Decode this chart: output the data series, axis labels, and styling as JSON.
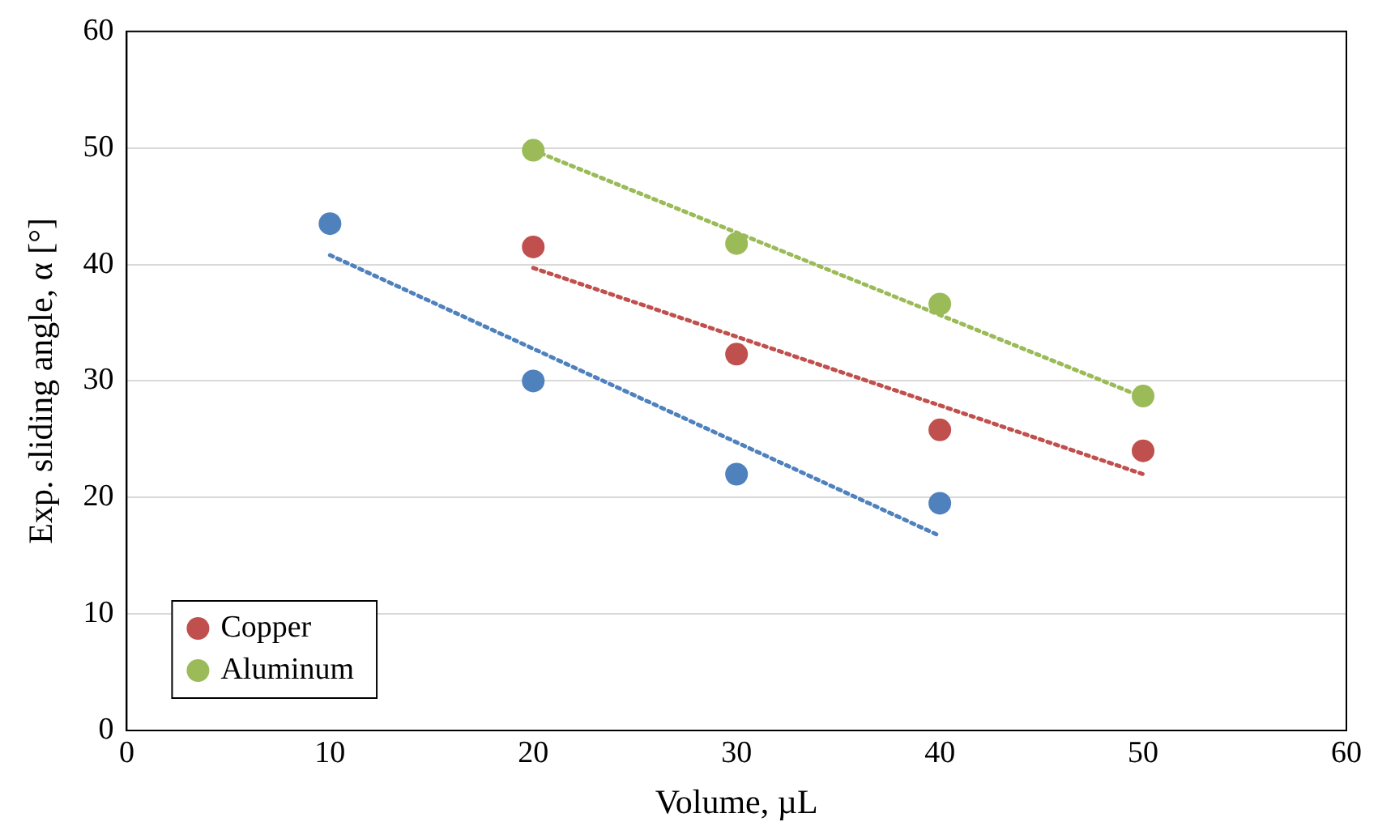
{
  "chart_data": {
    "type": "scatter",
    "xlabel": "Volume, µL",
    "ylabel": "Exp. sliding angle, α [°]",
    "xlim": [
      0,
      60
    ],
    "ylim": [
      0,
      60
    ],
    "xticks": [
      0,
      10,
      20,
      30,
      40,
      50,
      60
    ],
    "yticks": [
      0,
      10,
      20,
      30,
      40,
      50,
      60
    ],
    "grid": "y",
    "legend": "bottom left",
    "marker": "circle",
    "series": [
      {
        "color": "#4f81bd",
        "x": [
          10,
          20,
          30,
          40
        ],
        "values": [
          43.5,
          30,
          22,
          19.5
        ]
      },
      {
        "name": "Copper",
        "color": "#c0504d",
        "x": [
          20,
          30,
          40,
          50
        ],
        "values": [
          41.5,
          32.3,
          25.8,
          24
        ]
      },
      {
        "name": "Aluminum",
        "color": "#9bbb59",
        "x": [
          20,
          30,
          40,
          50
        ],
        "values": [
          49.8,
          41.8,
          36.6,
          28.7
        ]
      },
      {
        "type": "line",
        "marker": "none",
        "line_style": "dotted",
        "color": "#4f81bd",
        "x": [
          10,
          40
        ],
        "values": [
          40.8,
          16.7
        ]
      },
      {
        "type": "line",
        "marker": "none",
        "line_style": "dotted",
        "color": "#c0504d",
        "x": [
          20,
          50
        ],
        "values": [
          39.7,
          22
        ]
      },
      {
        "type": "line",
        "marker": "none",
        "line_style": "dotted",
        "color": "#9bbb59",
        "x": [
          20,
          50
        ],
        "values": [
          49.8,
          28.6
        ]
      }
    ]
  }
}
